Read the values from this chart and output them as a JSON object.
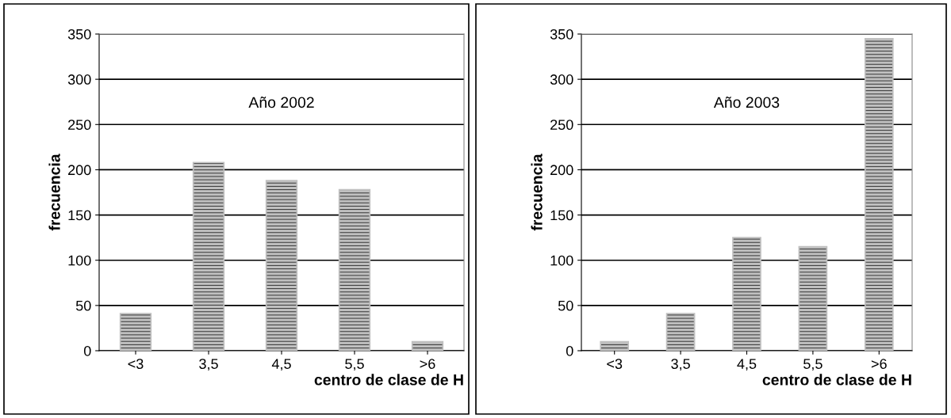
{
  "chart_data": [
    {
      "type": "bar",
      "categories": [
        "<3",
        "3,5",
        "4,5",
        "5,5",
        ">6"
      ],
      "values": [
        41,
        208,
        188,
        178,
        10
      ],
      "color": "#c0c0c0",
      "xlabel": "centro de clase de H",
      "ylabel": "frecuencia",
      "ylim": [
        0,
        350
      ],
      "yticks": [
        0,
        50,
        100,
        150,
        200,
        250,
        300,
        350
      ],
      "grid": "y",
      "annotations": [
        "Año 2002"
      ]
    },
    {
      "type": "bar",
      "categories": [
        "<3",
        "3,5",
        "4,5",
        "5,5",
        ">6"
      ],
      "values": [
        10,
        41,
        125,
        115,
        345
      ],
      "color": "#c0c0c0",
      "xlabel": "centro de clase de H",
      "ylabel": "frecuencia",
      "ylim": [
        0,
        350
      ],
      "yticks": [
        0,
        50,
        100,
        150,
        200,
        250,
        300,
        350
      ],
      "grid": "y",
      "annotations": [
        "Año 2003"
      ]
    }
  ]
}
